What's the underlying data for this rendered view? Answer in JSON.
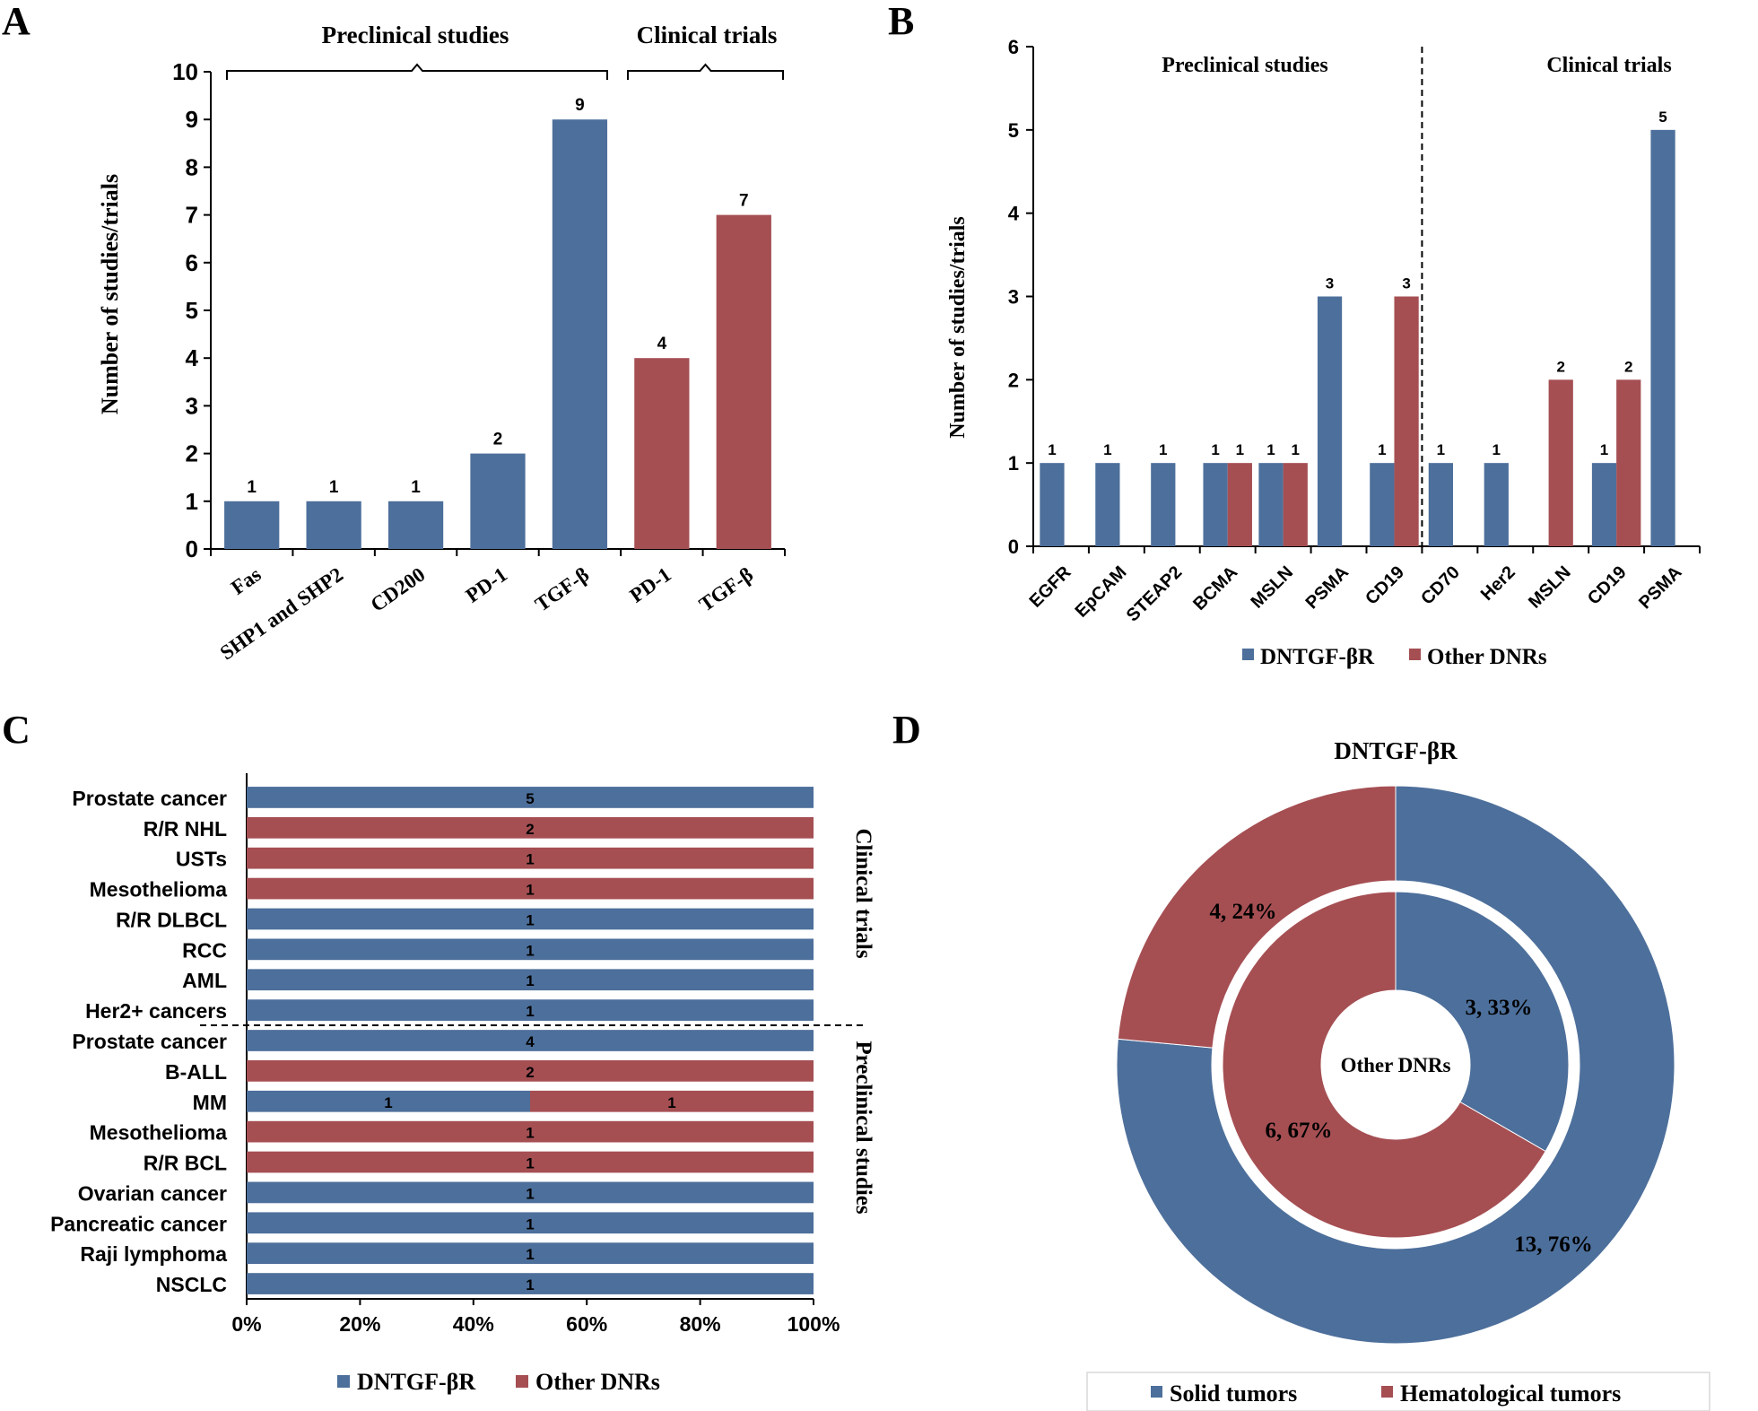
{
  "colors": {
    "blue": "#4d6f9b",
    "red": "#a54f53",
    "axis": "#000000"
  },
  "panels": {
    "a": "A",
    "b": "B",
    "c": "C",
    "d": "D"
  },
  "chart_data": [
    {
      "panel": "A",
      "type": "bar",
      "ylabel": "Number of studies/trials",
      "ylim": [
        0,
        10
      ],
      "yticks": [
        "0",
        "1",
        "2",
        "3",
        "4",
        "5",
        "6",
        "7",
        "8",
        "9",
        "10"
      ],
      "groups": [
        {
          "label": "Preclinical studies"
        },
        {
          "label": "Clinical trials"
        }
      ],
      "categories": [
        "Fas",
        "SHP1 and SHP2",
        "CD200",
        "PD-1",
        "TGF-β",
        "PD-1",
        "TGF-β"
      ],
      "values": [
        1,
        1,
        1,
        2,
        9,
        4,
        7
      ],
      "bar_colors": [
        "blue",
        "blue",
        "blue",
        "blue",
        "blue",
        "red",
        "red"
      ],
      "data_labels": [
        "1",
        "1",
        "1",
        "2",
        "9",
        "4",
        "7"
      ]
    },
    {
      "panel": "B",
      "type": "bar",
      "ylabel": "Number of studies/trials",
      "ylim": [
        0,
        6
      ],
      "yticks": [
        "0",
        "1",
        "2",
        "3",
        "4",
        "5",
        "6"
      ],
      "groups": [
        {
          "label": "Preclinical studies"
        },
        {
          "label": "Clinical trials"
        }
      ],
      "categories": [
        "EGFR",
        "EpCAM",
        "STEAP2",
        "BCMA",
        "MSLN",
        "PSMA",
        "CD19",
        "CD70",
        "Her2",
        "MSLN",
        "CD19",
        "PSMA"
      ],
      "series": [
        {
          "name": "DNTGF-βR",
          "color": "blue",
          "values": [
            1,
            1,
            1,
            1,
            1,
            3,
            1,
            1,
            1,
            null,
            1,
            5
          ],
          "labels": [
            "1",
            "1",
            "1",
            "1",
            "1",
            "3",
            "1",
            "1",
            "1",
            "",
            "1",
            "5"
          ]
        },
        {
          "name": "Other DNRs",
          "color": "red",
          "values": [
            null,
            null,
            null,
            1,
            1,
            null,
            3,
            null,
            null,
            2,
            2,
            null
          ],
          "labels": [
            "",
            "",
            "",
            "1",
            "1",
            "",
            "3",
            "",
            "",
            "2",
            "2",
            ""
          ]
        }
      ],
      "legend": "bottom"
    },
    {
      "panel": "C",
      "type": "bar",
      "orientation": "horizontal-stacked-100",
      "xticks": [
        "0%",
        "20%",
        "40%",
        "60%",
        "80%",
        "100%"
      ],
      "groups": [
        {
          "label": "Clinical trials"
        },
        {
          "label": "Preclinical studies"
        }
      ],
      "categories": [
        "Prostate cancer",
        "R/R NHL",
        "USTs",
        "Mesothelioma",
        "R/R DLBCL",
        "RCC",
        "AML",
        "Her2+ cancers",
        "Prostate cancer",
        "B-ALL",
        "MM",
        "Mesothelioma",
        "R/R BCL",
        "Ovarian cancer",
        "Pancreatic cancer",
        "Raji lymphoma",
        "NSCLC"
      ],
      "series": [
        {
          "name": "DNTGF-βR",
          "color": "blue",
          "values": [
            5,
            0,
            0,
            0,
            1,
            1,
            1,
            1,
            4,
            0,
            1,
            0,
            0,
            1,
            1,
            1,
            1
          ],
          "labels": [
            "5",
            "",
            "",
            "",
            "1",
            "1",
            "1",
            "1",
            "4",
            "",
            "1",
            "",
            "",
            "1",
            "1",
            "1",
            "1"
          ]
        },
        {
          "name": "Other DNRs",
          "color": "red",
          "values": [
            0,
            2,
            1,
            1,
            0,
            0,
            0,
            0,
            0,
            2,
            1,
            1,
            1,
            0,
            0,
            0,
            0
          ],
          "labels": [
            "",
            "2",
            "1",
            "1",
            "",
            "",
            "",
            "",
            "",
            "2",
            "1",
            "1",
            "1",
            "",
            "",
            "",
            ""
          ]
        }
      ],
      "legend": "bottom"
    },
    {
      "panel": "D",
      "type": "pie",
      "style": "nested-donut",
      "outer": {
        "title": "DNTGF-βR",
        "slices": [
          {
            "name": "Solid tumors",
            "color": "blue",
            "value": 13,
            "label": "13, 76%"
          },
          {
            "name": "Hematological tumors",
            "color": "red",
            "value": 4,
            "label": "4, 24%"
          }
        ]
      },
      "inner": {
        "title": "Other DNRs",
        "slices": [
          {
            "name": "Solid tumors",
            "color": "blue",
            "value": 3,
            "label": "3, 33%"
          },
          {
            "name": "Hematological tumors",
            "color": "red",
            "value": 6,
            "label": "6, 67%"
          }
        ]
      },
      "legend": {
        "position": "bottom",
        "items": [
          "Solid tumors",
          "Hematological tumors"
        ]
      }
    }
  ]
}
